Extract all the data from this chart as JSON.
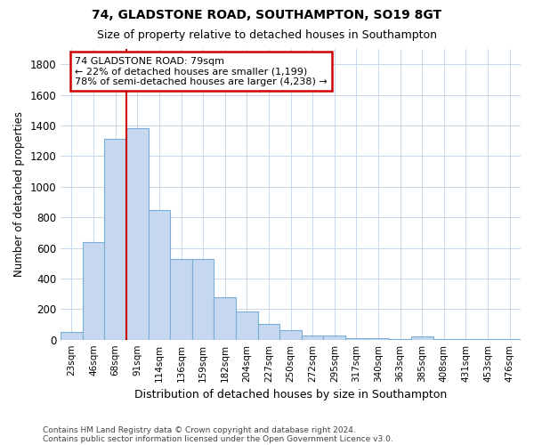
{
  "title1": "74, GLADSTONE ROAD, SOUTHAMPTON, SO19 8GT",
  "title2": "Size of property relative to detached houses in Southampton",
  "xlabel": "Distribution of detached houses by size in Southampton",
  "ylabel": "Number of detached properties",
  "categories": [
    "23sqm",
    "46sqm",
    "68sqm",
    "91sqm",
    "114sqm",
    "136sqm",
    "159sqm",
    "182sqm",
    "204sqm",
    "227sqm",
    "250sqm",
    "272sqm",
    "295sqm",
    "317sqm",
    "340sqm",
    "363sqm",
    "385sqm",
    "408sqm",
    "431sqm",
    "453sqm",
    "476sqm"
  ],
  "values": [
    50,
    640,
    1310,
    1380,
    850,
    530,
    530,
    280,
    185,
    105,
    65,
    30,
    30,
    10,
    8,
    5,
    20,
    5,
    3,
    2,
    2
  ],
  "bar_color": "#c5d8f0",
  "bar_edge_color": "#7aaed6",
  "grid_color": "#c8d8ec",
  "annotation_text": "74 GLADSTONE ROAD: 79sqm\n← 22% of detached houses are smaller (1,199)\n78% of semi-detached houses are larger (4,238) →",
  "annotation_box_color": "#ffffff",
  "annotation_box_edge": "#cc0000",
  "vline_color": "#cc0000",
  "ylim": [
    0,
    1900
  ],
  "yticks": [
    0,
    200,
    400,
    600,
    800,
    1000,
    1200,
    1400,
    1600,
    1800
  ],
  "footer1": "Contains HM Land Registry data © Crown copyright and database right 2024.",
  "footer2": "Contains public sector information licensed under the Open Government Licence v3.0.",
  "bg_color": "#ffffff",
  "plot_bg_color": "#ffffff"
}
